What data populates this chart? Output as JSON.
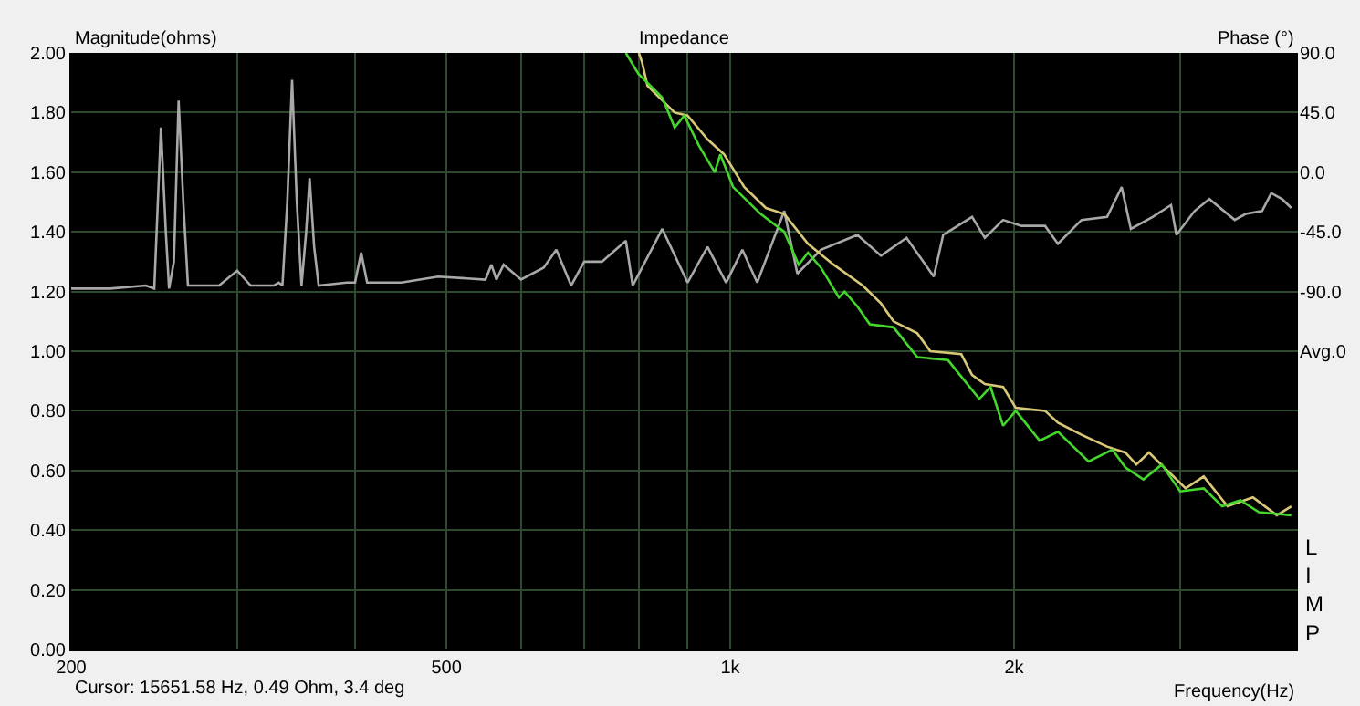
{
  "chart_data": {
    "type": "line",
    "title": "Impedance",
    "xlabel": "Frequency(Hz)",
    "ylabel": "Magnitude(ohms)",
    "y2label": "Phase (°)",
    "annotations": [
      "Cursor: 15651.58 Hz, 0.49 Ohm, 3.4 deg",
      "LIMP"
    ],
    "log": "x",
    "grid": true,
    "marker": "none",
    "line_style": "solid",
    "xlim": [
      200,
      4000
    ],
    "xticks": [
      200,
      {
        "value": 300,
        "label": null
      },
      {
        "value": 400,
        "label": null
      },
      500,
      {
        "value": 600,
        "label": null
      },
      {
        "value": 700,
        "label": null
      },
      {
        "value": 800,
        "label": null
      },
      {
        "value": 900,
        "label": null
      },
      {
        "value": 1000,
        "label": "1k"
      },
      {
        "value": 2000,
        "label": "2k"
      },
      {
        "value": 3000,
        "label": null
      }
    ],
    "ylim": [
      0,
      2
    ],
    "yticks": [
      {
        "value": 0,
        "label": "0.00"
      },
      {
        "value": 0.2,
        "label": "0.20"
      },
      {
        "value": 0.4,
        "label": "0.40"
      },
      {
        "value": 0.6,
        "label": "0.60"
      },
      {
        "value": 0.8,
        "label": "0.80"
      },
      {
        "value": 1,
        "label": "1.00"
      },
      {
        "value": 1.2,
        "label": "1.20"
      },
      {
        "value": 1.4,
        "label": "1.40"
      },
      {
        "value": 1.6,
        "label": "1.60"
      },
      {
        "value": 1.8,
        "label": "1.80"
      },
      {
        "value": 2,
        "label": "2.00"
      }
    ],
    "y2lim": [
      -360,
      90
    ],
    "y2ticks": [
      {
        "value": 90,
        "label": "90.0"
      },
      {
        "value": 45,
        "label": "45.0"
      },
      {
        "value": 0,
        "label": "0.0"
      },
      {
        "value": -45,
        "label": "-45.0"
      },
      {
        "value": -90,
        "label": "-90.0"
      },
      {
        "value": -135,
        "label": "Avg.0"
      }
    ],
    "series": [
      {
        "color": "#a8a8a8",
        "x": [
          200,
          220,
          240,
          245,
          249,
          252,
          254,
          257,
          260,
          263,
          266,
          287,
          300,
          310,
          328,
          332,
          335,
          339,
          343,
          347,
          351,
          355,
          358,
          362,
          366,
          392,
          400,
          406,
          412,
          448,
          490,
          550,
          558,
          565,
          575,
          600,
          634,
          654,
          678,
          700,
          731,
          775,
          788,
          847,
          901,
          946,
          990,
          1030,
          1068,
          1141,
          1178,
          1248,
          1364,
          1445,
          1538,
          1644,
          1682,
          1805,
          1862,
          1947,
          2036,
          2157,
          2226,
          2358,
          2510,
          2601,
          2660,
          2805,
          2934,
          2973,
          3108,
          3222,
          3428,
          3521,
          3665,
          3748,
          3849,
          3936
        ],
        "values": [
          1.21,
          1.21,
          1.22,
          1.21,
          1.75,
          1.4,
          1.21,
          1.3,
          1.84,
          1.5,
          1.22,
          1.22,
          1.27,
          1.22,
          1.22,
          1.23,
          1.22,
          1.5,
          1.91,
          1.5,
          1.22,
          1.4,
          1.58,
          1.35,
          1.22,
          1.23,
          1.23,
          1.33,
          1.23,
          1.23,
          1.25,
          1.24,
          1.29,
          1.24,
          1.29,
          1.24,
          1.28,
          1.34,
          1.22,
          1.3,
          1.3,
          1.37,
          1.22,
          1.41,
          1.23,
          1.35,
          1.23,
          1.34,
          1.23,
          1.47,
          1.26,
          1.34,
          1.39,
          1.32,
          1.38,
          1.25,
          1.39,
          1.45,
          1.38,
          1.44,
          1.42,
          1.42,
          1.36,
          1.44,
          1.45,
          1.55,
          1.41,
          1.45,
          1.49,
          1.39,
          1.47,
          1.51,
          1.44,
          1.46,
          1.47,
          1.53,
          1.51,
          1.48
        ]
      },
      {
        "color": "#d8c878",
        "x": [
          800,
          806,
          817,
          873,
          901,
          946,
          985,
          1035,
          1091,
          1141,
          1209,
          1287,
          1382,
          1445,
          1490,
          1579,
          1630,
          1758,
          1805,
          1862,
          1947,
          2008,
          2157,
          2226,
          2358,
          2510,
          2625,
          2696,
          2780,
          2907,
          3041,
          3178,
          3368,
          3584,
          3799,
          3936
        ],
        "values": [
          2.0,
          1.97,
          1.89,
          1.8,
          1.79,
          1.71,
          1.66,
          1.55,
          1.48,
          1.46,
          1.36,
          1.29,
          1.22,
          1.16,
          1.1,
          1.06,
          1.0,
          0.99,
          0.92,
          0.89,
          0.88,
          0.81,
          0.8,
          0.76,
          0.72,
          0.68,
          0.66,
          0.62,
          0.66,
          0.6,
          0.54,
          0.58,
          0.48,
          0.51,
          0.45,
          0.48
        ]
      },
      {
        "color": "#44d62c",
        "x": [
          775,
          799,
          847,
          873,
          894,
          926,
          963,
          976,
          1007,
          1077,
          1141,
          1182,
          1209,
          1248,
          1304,
          1322,
          1364,
          1406,
          1490,
          1579,
          1702,
          1837,
          1888,
          1947,
          2008,
          2129,
          2226,
          2399,
          2543,
          2625,
          2743,
          2869,
          3000,
          3178,
          3324,
          3476,
          3636,
          3936
        ],
        "values": [
          2.0,
          1.93,
          1.85,
          1.75,
          1.79,
          1.69,
          1.6,
          1.66,
          1.55,
          1.46,
          1.4,
          1.29,
          1.33,
          1.28,
          1.18,
          1.2,
          1.15,
          1.09,
          1.08,
          0.98,
          0.97,
          0.84,
          0.88,
          0.75,
          0.8,
          0.7,
          0.73,
          0.63,
          0.67,
          0.61,
          0.57,
          0.62,
          0.53,
          0.54,
          0.48,
          0.5,
          0.46,
          0.45
        ]
      }
    ]
  }
}
